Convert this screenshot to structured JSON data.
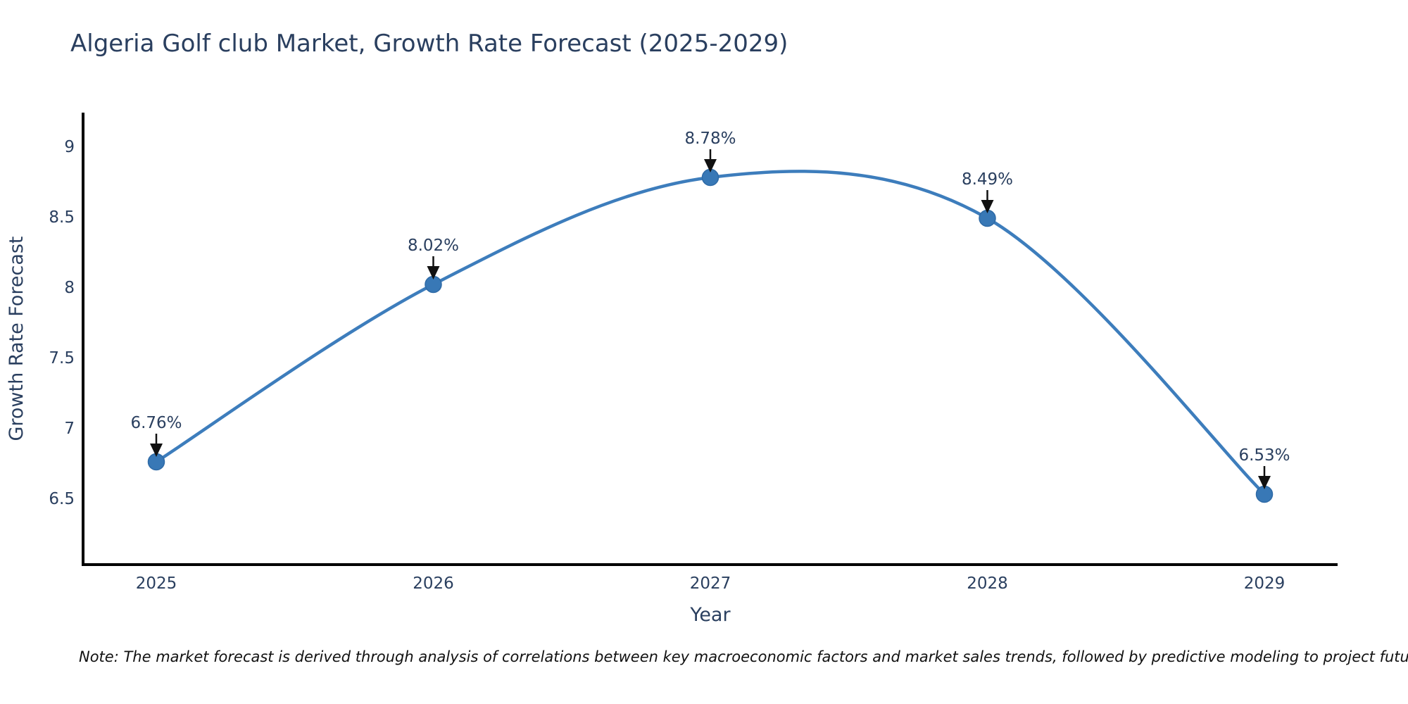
{
  "chart": {
    "title": "Algeria Golf club Market, Growth Rate Forecast (2025-2029)",
    "xlabel": "Year",
    "ylabel": "Growth Rate Forecast",
    "note": "Note: The market forecast is derived through analysis of correlations between key macroeconomic factors and market sales trends, followed by predictive modeling to project future sales"
  },
  "chart_data": {
    "type": "line",
    "line_shape": "spline",
    "x": [
      "2025",
      "2026",
      "2027",
      "2028",
      "2029"
    ],
    "values": [
      6.76,
      8.02,
      8.78,
      8.49,
      6.53
    ],
    "point_labels": [
      "6.76%",
      "8.02%",
      "8.78%",
      "8.49%",
      "6.53%"
    ],
    "series_name": "Growth Rate Forecast",
    "title": "Algeria Golf club Market, Growth Rate Forecast (2025-2029)",
    "xlabel": "Year",
    "ylabel": "Growth Rate Forecast",
    "yticks": [
      6.5,
      7,
      7.5,
      8,
      8.5,
      9
    ],
    "ylim": [
      6.03,
      9.24
    ],
    "grid": false,
    "legend": "none",
    "colors": {
      "line": "#3d7dbc",
      "marker": "#3878b6",
      "marker_edge": "#2e6aa6",
      "axis_line": "#000000",
      "text": "#2a3f5f",
      "annotation_text": "#2a3f5f",
      "annotation_arrow": "#111111",
      "note_text": "#111111",
      "background": "#ffffff"
    }
  }
}
